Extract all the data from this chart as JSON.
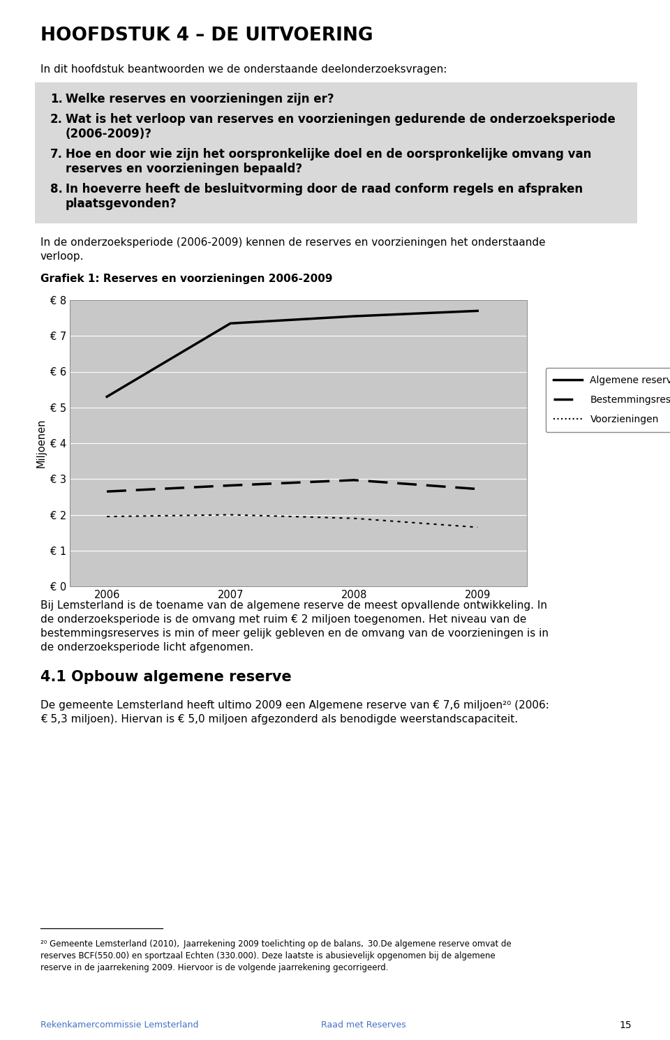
{
  "page_title": "HOOFDSTUK 4 – DE UITVOERING",
  "intro_text": "In dit hoofdstuk beantwoorden we de onderstaande deelonderzoeksvragen:",
  "box_bg": "#d9d9d9",
  "grafiek_label": "Grafiek 1: Reserves en voorzieningen 2006-2009",
  "chart_bg": "#c8c8c8",
  "chart_ylabel": "Miljoenen",
  "chart_yticks": [
    0,
    1,
    2,
    3,
    4,
    5,
    6,
    7,
    8
  ],
  "chart_ytick_labels": [
    "€ 0",
    "€ 1",
    "€ 2",
    "€ 3",
    "€ 4",
    "€ 5",
    "€ 6",
    "€ 7",
    "€ 8"
  ],
  "chart_xticks": [
    2006,
    2007,
    2008,
    2009
  ],
  "algemene_reserve": {
    "x": [
      2006,
      2007,
      2008,
      2009
    ],
    "y": [
      5.3,
      7.35,
      7.55,
      7.7
    ]
  },
  "bestemmingsreserve": {
    "x": [
      2006,
      2007,
      2008,
      2009
    ],
    "y": [
      2.65,
      2.82,
      2.97,
      2.72
    ]
  },
  "voorzieningen": {
    "x": [
      2006,
      2007,
      2008,
      2009
    ],
    "y": [
      1.95,
      2.0,
      1.9,
      1.65
    ]
  },
  "footer_left": "Rekenkamercommissie Lemsterland",
  "footer_right": "Raad met Reserves",
  "page_number": "15",
  "footer_color": "#4472c4",
  "bg_color": "#ffffff"
}
